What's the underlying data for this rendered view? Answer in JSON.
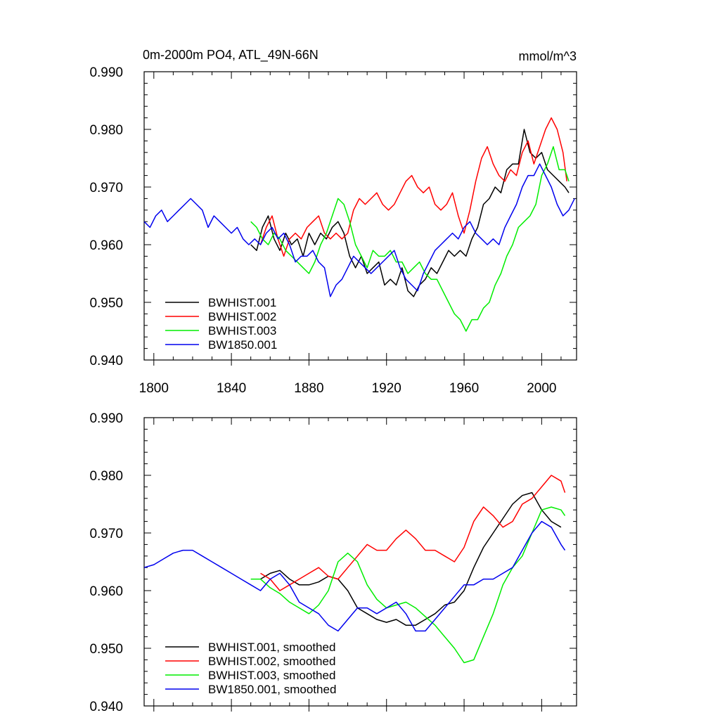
{
  "chart_data": [
    {
      "type": "line",
      "title": "0m-2000m PO4, ATL_49N-66N",
      "units_label": "mmol/m^3",
      "xlim": [
        1795,
        2018
      ],
      "ylim": [
        0.94,
        0.99
      ],
      "xticks": [
        1800,
        1840,
        1880,
        1920,
        1960,
        2000
      ],
      "xtick_labels": [
        "1800",
        "1840",
        "1880",
        "1920",
        "1960",
        "2000"
      ],
      "yticks": [
        0.94,
        0.95,
        0.96,
        0.97,
        0.98,
        0.99
      ],
      "ytick_labels": [
        "0.940",
        "0.950",
        "0.960",
        "0.970",
        "0.980",
        "0.990"
      ],
      "legend_position": "lower-left",
      "series": [
        {
          "name": "BWHIST.001",
          "color": "#000000",
          "x": [
            1850,
            1853,
            1856,
            1859,
            1862,
            1865,
            1868,
            1871,
            1874,
            1877,
            1880,
            1883,
            1886,
            1889,
            1892,
            1895,
            1898,
            1901,
            1904,
            1907,
            1910,
            1913,
            1916,
            1919,
            1922,
            1925,
            1928,
            1931,
            1934,
            1937,
            1940,
            1943,
            1946,
            1949,
            1952,
            1955,
            1958,
            1961,
            1964,
            1967,
            1970,
            1973,
            1976,
            1979,
            1982,
            1985,
            1988,
            1991,
            1994,
            1997,
            2000,
            2003,
            2006,
            2009,
            2012,
            2014
          ],
          "y": [
            0.96,
            0.959,
            0.963,
            0.965,
            0.961,
            0.959,
            0.962,
            0.96,
            0.961,
            0.958,
            0.962,
            0.96,
            0.962,
            0.961,
            0.963,
            0.964,
            0.962,
            0.958,
            0.956,
            0.958,
            0.955,
            0.956,
            0.957,
            0.953,
            0.954,
            0.953,
            0.956,
            0.952,
            0.951,
            0.953,
            0.954,
            0.956,
            0.955,
            0.957,
            0.959,
            0.958,
            0.959,
            0.958,
            0.961,
            0.963,
            0.967,
            0.968,
            0.97,
            0.969,
            0.973,
            0.974,
            0.974,
            0.98,
            0.976,
            0.975,
            0.976,
            0.973,
            0.972,
            0.971,
            0.97,
            0.969
          ]
        },
        {
          "name": "BWHIST.002",
          "color": "#ff0000",
          "x": [
            1855,
            1858,
            1861,
            1864,
            1867,
            1870,
            1873,
            1876,
            1879,
            1882,
            1885,
            1888,
            1891,
            1894,
            1897,
            1900,
            1903,
            1906,
            1909,
            1912,
            1915,
            1918,
            1921,
            1924,
            1927,
            1930,
            1933,
            1936,
            1939,
            1942,
            1945,
            1948,
            1951,
            1954,
            1957,
            1960,
            1963,
            1966,
            1969,
            1972,
            1975,
            1978,
            1981,
            1984,
            1987,
            1990,
            1993,
            1996,
            1999,
            2002,
            2005,
            2008,
            2011,
            2013
          ],
          "y": [
            0.96,
            0.963,
            0.965,
            0.961,
            0.958,
            0.961,
            0.962,
            0.961,
            0.963,
            0.964,
            0.965,
            0.962,
            0.961,
            0.962,
            0.961,
            0.962,
            0.966,
            0.968,
            0.967,
            0.968,
            0.969,
            0.967,
            0.966,
            0.967,
            0.969,
            0.971,
            0.972,
            0.97,
            0.969,
            0.97,
            0.967,
            0.966,
            0.967,
            0.969,
            0.965,
            0.962,
            0.966,
            0.971,
            0.975,
            0.977,
            0.974,
            0.972,
            0.971,
            0.973,
            0.972,
            0.976,
            0.978,
            0.974,
            0.977,
            0.98,
            0.982,
            0.98,
            0.976,
            0.971
          ]
        },
        {
          "name": "BWHIST.003",
          "color": "#00ee00",
          "x": [
            1850,
            1853,
            1856,
            1859,
            1862,
            1865,
            1868,
            1871,
            1874,
            1877,
            1880,
            1883,
            1886,
            1889,
            1892,
            1895,
            1898,
            1901,
            1904,
            1907,
            1910,
            1913,
            1916,
            1919,
            1922,
            1925,
            1928,
            1931,
            1934,
            1937,
            1940,
            1943,
            1946,
            1949,
            1952,
            1955,
            1958,
            1961,
            1964,
            1967,
            1970,
            1973,
            1976,
            1979,
            1982,
            1985,
            1988,
            1991,
            1994,
            1997,
            2000,
            2003,
            2006,
            2009,
            2012,
            2014
          ],
          "y": [
            0.964,
            0.963,
            0.961,
            0.96,
            0.962,
            0.961,
            0.959,
            0.958,
            0.957,
            0.956,
            0.955,
            0.957,
            0.96,
            0.962,
            0.965,
            0.968,
            0.967,
            0.964,
            0.96,
            0.958,
            0.956,
            0.959,
            0.958,
            0.958,
            0.959,
            0.957,
            0.957,
            0.955,
            0.956,
            0.957,
            0.955,
            0.954,
            0.954,
            0.952,
            0.95,
            0.948,
            0.947,
            0.945,
            0.947,
            0.947,
            0.949,
            0.95,
            0.953,
            0.955,
            0.958,
            0.96,
            0.963,
            0.964,
            0.965,
            0.967,
            0.972,
            0.974,
            0.977,
            0.973,
            0.973,
            0.971
          ]
        },
        {
          "name": "BW1850.001",
          "color": "#0000ee",
          "x": [
            1795,
            1798,
            1801,
            1804,
            1807,
            1810,
            1813,
            1816,
            1819,
            1822,
            1825,
            1828,
            1831,
            1834,
            1837,
            1840,
            1843,
            1846,
            1849,
            1852,
            1855,
            1858,
            1861,
            1864,
            1867,
            1870,
            1873,
            1876,
            1879,
            1882,
            1885,
            1888,
            1891,
            1894,
            1897,
            1900,
            1903,
            1906,
            1909,
            1912,
            1915,
            1918,
            1921,
            1924,
            1927,
            1930,
            1933,
            1936,
            1939,
            1942,
            1945,
            1948,
            1951,
            1954,
            1957,
            1960,
            1963,
            1966,
            1969,
            1972,
            1975,
            1978,
            1981,
            1984,
            1987,
            1990,
            1993,
            1996,
            1999,
            2002,
            2005,
            2008,
            2011,
            2014,
            2017
          ],
          "y": [
            0.964,
            0.963,
            0.965,
            0.966,
            0.964,
            0.965,
            0.966,
            0.967,
            0.968,
            0.967,
            0.966,
            0.963,
            0.965,
            0.964,
            0.963,
            0.962,
            0.963,
            0.961,
            0.96,
            0.961,
            0.96,
            0.962,
            0.963,
            0.961,
            0.962,
            0.96,
            0.957,
            0.958,
            0.958,
            0.959,
            0.957,
            0.956,
            0.951,
            0.953,
            0.954,
            0.956,
            0.958,
            0.957,
            0.956,
            0.955,
            0.956,
            0.957,
            0.958,
            0.959,
            0.956,
            0.954,
            0.953,
            0.952,
            0.955,
            0.957,
            0.959,
            0.96,
            0.961,
            0.962,
            0.961,
            0.963,
            0.964,
            0.962,
            0.961,
            0.96,
            0.961,
            0.96,
            0.963,
            0.965,
            0.967,
            0.97,
            0.972,
            0.972,
            0.974,
            0.972,
            0.97,
            0.967,
            0.965,
            0.966,
            0.968
          ]
        }
      ]
    },
    {
      "type": "line",
      "xlim": [
        1795,
        2018
      ],
      "ylim": [
        0.94,
        0.99
      ],
      "xticks": [
        1800,
        1840,
        1880,
        1920,
        1960,
        2000
      ],
      "yticks": [
        0.94,
        0.95,
        0.96,
        0.97,
        0.98,
        0.99
      ],
      "ytick_labels": [
        "0.940",
        "0.950",
        "0.960",
        "0.970",
        "0.980",
        "0.990"
      ],
      "legend_position": "lower-left",
      "series": [
        {
          "name": "BWHIST.001, smoothed",
          "color": "#000000",
          "x": [
            1855,
            1860,
            1865,
            1870,
            1875,
            1880,
            1885,
            1890,
            1895,
            1900,
            1905,
            1910,
            1915,
            1920,
            1925,
            1930,
            1935,
            1940,
            1945,
            1950,
            1955,
            1960,
            1965,
            1970,
            1975,
            1980,
            1985,
            1990,
            1995,
            2000,
            2005,
            2010
          ],
          "y": [
            0.962,
            0.963,
            0.9635,
            0.962,
            0.961,
            0.961,
            0.9615,
            0.9625,
            0.962,
            0.96,
            0.957,
            0.956,
            0.955,
            0.9545,
            0.955,
            0.954,
            0.954,
            0.955,
            0.956,
            0.9575,
            0.958,
            0.96,
            0.964,
            0.9675,
            0.97,
            0.9725,
            0.975,
            0.9765,
            0.977,
            0.974,
            0.972,
            0.971
          ]
        },
        {
          "name": "BWHIST.002, smoothed",
          "color": "#ff0000",
          "x": [
            1855,
            1860,
            1865,
            1870,
            1875,
            1880,
            1885,
            1890,
            1895,
            1900,
            1905,
            1910,
            1915,
            1920,
            1925,
            1930,
            1935,
            1940,
            1945,
            1950,
            1955,
            1960,
            1965,
            1970,
            1975,
            1980,
            1985,
            1990,
            1995,
            2000,
            2005,
            2010,
            2012
          ],
          "y": [
            0.963,
            0.962,
            0.96,
            0.961,
            0.962,
            0.963,
            0.964,
            0.9625,
            0.962,
            0.964,
            0.966,
            0.968,
            0.967,
            0.967,
            0.969,
            0.9705,
            0.969,
            0.967,
            0.967,
            0.966,
            0.965,
            0.9675,
            0.972,
            0.9745,
            0.973,
            0.971,
            0.972,
            0.975,
            0.976,
            0.978,
            0.98,
            0.979,
            0.977
          ]
        },
        {
          "name": "BWHIST.003, smoothed",
          "color": "#00ee00",
          "x": [
            1850,
            1855,
            1860,
            1865,
            1870,
            1875,
            1880,
            1885,
            1890,
            1895,
            1900,
            1905,
            1910,
            1915,
            1920,
            1925,
            1930,
            1935,
            1940,
            1945,
            1950,
            1955,
            1960,
            1965,
            1970,
            1975,
            1980,
            1985,
            1990,
            1995,
            2000,
            2005,
            2010,
            2012
          ],
          "y": [
            0.962,
            0.962,
            0.9605,
            0.9595,
            0.958,
            0.957,
            0.956,
            0.9575,
            0.96,
            0.965,
            0.9665,
            0.965,
            0.961,
            0.9585,
            0.957,
            0.9575,
            0.958,
            0.957,
            0.9555,
            0.954,
            0.952,
            0.95,
            0.9475,
            0.948,
            0.952,
            0.956,
            0.961,
            0.964,
            0.966,
            0.97,
            0.974,
            0.9745,
            0.974,
            0.973
          ]
        },
        {
          "name": "BW1850.001, smoothed",
          "color": "#0000ee",
          "x": [
            1795,
            1800,
            1805,
            1810,
            1815,
            1820,
            1825,
            1830,
            1835,
            1840,
            1845,
            1850,
            1855,
            1860,
            1865,
            1870,
            1875,
            1880,
            1885,
            1890,
            1895,
            1900,
            1905,
            1910,
            1915,
            1920,
            1925,
            1930,
            1935,
            1940,
            1945,
            1950,
            1955,
            1960,
            1965,
            1970,
            1975,
            1980,
            1985,
            1990,
            1995,
            2000,
            2005,
            2010,
            2012
          ],
          "y": [
            0.964,
            0.9645,
            0.9655,
            0.9665,
            0.967,
            0.967,
            0.966,
            0.965,
            0.964,
            0.963,
            0.962,
            0.961,
            0.96,
            0.962,
            0.963,
            0.961,
            0.958,
            0.957,
            0.956,
            0.954,
            0.953,
            0.955,
            0.957,
            0.957,
            0.956,
            0.957,
            0.958,
            0.956,
            0.953,
            0.953,
            0.955,
            0.957,
            0.959,
            0.961,
            0.961,
            0.962,
            0.962,
            0.963,
            0.964,
            0.967,
            0.97,
            0.972,
            0.971,
            0.968,
            0.967
          ]
        }
      ]
    }
  ]
}
